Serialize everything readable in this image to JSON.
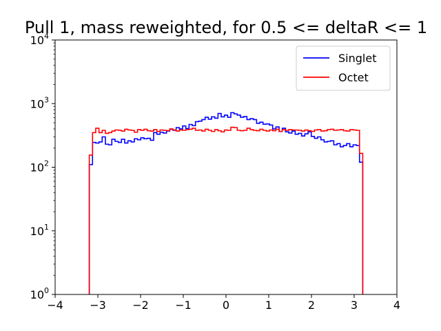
{
  "chart_data": {
    "type": "histogram-step",
    "title": "Pull 1, mass reweighted, for 0.5 <= deltaR <= 1",
    "xlabel": "",
    "ylabel": "",
    "xlim": [
      -4,
      4
    ],
    "ylim": [
      1,
      10000
    ],
    "yscale": "log",
    "x_ticks": [
      "−4",
      "−3",
      "−2",
      "−1",
      "0",
      "1",
      "2",
      "3",
      "4"
    ],
    "y_ticks": [
      {
        "base": "10",
        "exp": "0"
      },
      {
        "base": "10",
        "exp": "1"
      },
      {
        "base": "10",
        "exp": "2"
      },
      {
        "base": "10",
        "exp": "3"
      },
      {
        "base": "10",
        "exp": "4"
      }
    ],
    "grid": false,
    "legend_position": "top-right",
    "bin_range": [
      -3.2,
      3.2
    ],
    "series": [
      {
        "name": "Singlet",
        "color": "#0000ff",
        "values": [
          110,
          245,
          240,
          250,
          300,
          230,
          225,
          275,
          255,
          245,
          275,
          240,
          260,
          250,
          280,
          270,
          290,
          280,
          285,
          265,
          350,
          330,
          355,
          345,
          370,
          395,
          380,
          420,
          400,
          445,
          405,
          470,
          450,
          520,
          530,
          560,
          610,
          570,
          620,
          590,
          700,
          620,
          660,
          610,
          720,
          690,
          660,
          610,
          625,
          560,
          580,
          560,
          490,
          510,
          475,
          480,
          460,
          400,
          430,
          365,
          410,
          360,
          345,
          370,
          330,
          340,
          310,
          335,
          360,
          305,
          285,
          300,
          270,
          250,
          255,
          260,
          225,
          235,
          210,
          220,
          235,
          210,
          225,
          220,
          120
        ]
      },
      {
        "name": "Octet",
        "color": "#ff0000",
        "values": [
          155,
          350,
          410,
          350,
          380,
          340,
          350,
          370,
          385,
          380,
          370,
          395,
          385,
          380,
          355,
          390,
          380,
          395,
          375,
          370,
          390,
          365,
          385,
          380,
          375,
          400,
          385,
          370,
          385,
          380,
          390,
          395,
          410,
          380,
          385,
          370,
          395,
          380,
          365,
          390,
          375,
          360,
          385,
          380,
          425,
          420,
          380,
          375,
          380,
          410,
          390,
          380,
          375,
          395,
          380,
          370,
          385,
          375,
          395,
          365,
          390,
          380,
          390,
          385,
          385,
          380,
          370,
          385,
          375,
          365,
          385,
          390,
          370,
          375,
          390,
          395,
          380,
          385,
          390,
          375,
          370,
          390,
          385,
          380,
          165
        ]
      }
    ]
  }
}
